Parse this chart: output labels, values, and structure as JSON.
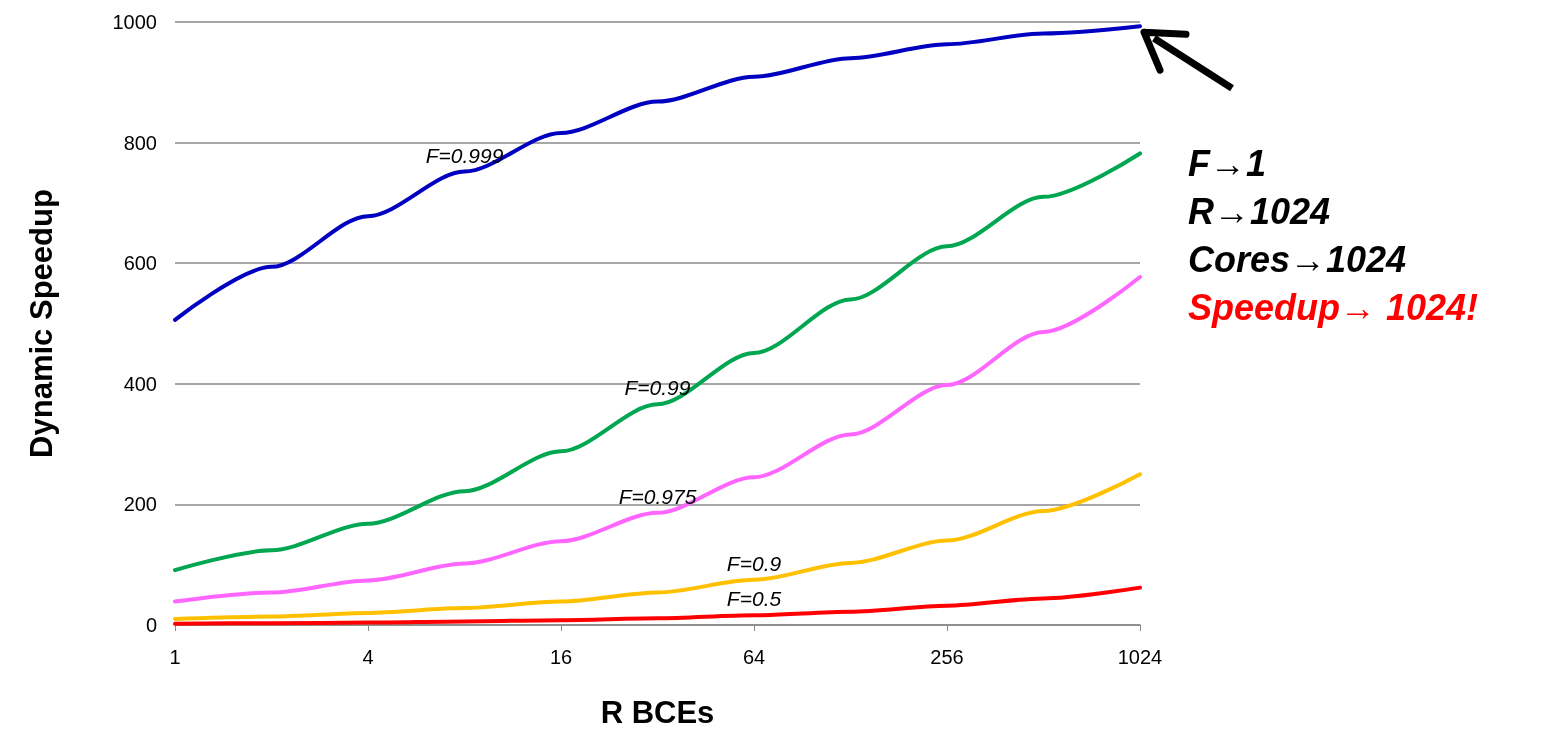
{
  "chart_data": {
    "type": "line",
    "xlabel": "R BCEs",
    "ylabel": "Dynamic Speedup",
    "log": "x",
    "xlim": [
      1,
      1024
    ],
    "xticks": [
      1,
      4,
      16,
      64,
      256,
      1024
    ],
    "ylim": [
      0,
      1000
    ],
    "yticks": [
      0,
      200,
      400,
      600,
      800,
      1000
    ],
    "grid": "y",
    "legend": false,
    "marker": "none",
    "line_style": "solid",
    "x": [
      1,
      2,
      4,
      8,
      16,
      32,
      64,
      128,
      256,
      512,
      1024
    ],
    "series": [
      {
        "name": "F=0.999",
        "color": "#0000c0",
        "values": [
          506,
          594,
          678,
          752,
          816,
          868,
          909,
          940,
          963,
          981,
          993
        ]
      },
      {
        "name": "F=0.99",
        "color": "#00a650",
        "values": [
          91,
          124,
          168,
          222,
          288,
          366,
          451,
          540,
          628,
          710,
          782
        ]
      },
      {
        "name": "F=0.975",
        "color": "#ff66ff",
        "values": [
          39,
          54,
          74,
          102,
          139,
          186,
          245,
          316,
          398,
          486,
          577
        ]
      },
      {
        "name": "F=0.9",
        "color": "#ffc000",
        "values": [
          10,
          14,
          20,
          28,
          39,
          54,
          75,
          103,
          140,
          189,
          250
        ]
      },
      {
        "name": "F=0.5",
        "color": "#ff0000",
        "values": [
          2,
          3,
          4,
          6,
          8,
          11,
          16,
          22,
          32,
          44,
          62
        ]
      }
    ],
    "annotations": [
      "F→1",
      "R→1024",
      "Cores→1024",
      "Speedup→ 1024!"
    ]
  }
}
